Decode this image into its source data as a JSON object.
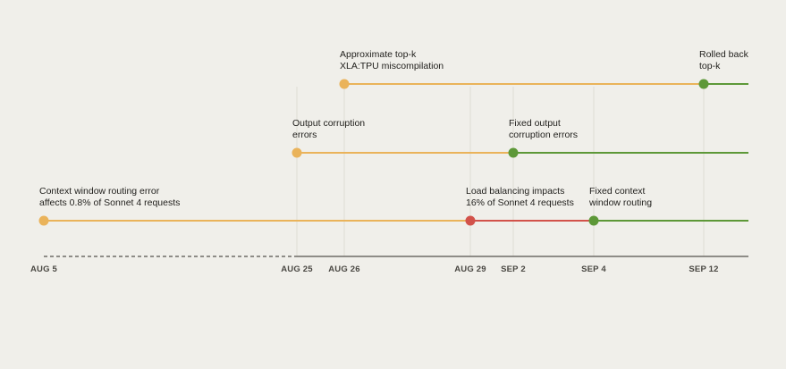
{
  "colors": {
    "background": "#f0efea",
    "issue": "#eab35a",
    "fixed": "#5d9838",
    "severe": "#d2524a",
    "marker_line": "#dedcd4",
    "axis": "#6e6c66",
    "text": "#1f1e1b"
  },
  "timeline": {
    "dates": [
      "AUG 5",
      "AUG 25",
      "AUG 26",
      "AUG 29",
      "SEP 2",
      "SEP 4",
      "SEP 12"
    ],
    "tracks": [
      {
        "id": "topk",
        "start_date": "AUG 26",
        "start_label": [
          "Approximate top-k",
          "XLA:TPU miscompilation"
        ],
        "segments": [
          {
            "from": "AUG 26",
            "to": "SEP 12",
            "status": "issue"
          },
          {
            "from": "SEP 12",
            "to": "end",
            "status": "fixed"
          }
        ],
        "events": [
          {
            "date": "SEP 12",
            "status": "fixed",
            "label": [
              "Rolled back",
              "top-k"
            ]
          }
        ]
      },
      {
        "id": "corruption",
        "start_date": "AUG 25",
        "start_label": [
          "Output corruption",
          "errors"
        ],
        "segments": [
          {
            "from": "AUG 25",
            "to": "SEP 2",
            "status": "issue"
          },
          {
            "from": "SEP 2",
            "to": "end",
            "status": "fixed"
          }
        ],
        "events": [
          {
            "date": "SEP 2",
            "status": "fixed",
            "label": [
              "Fixed output",
              "corruption errors"
            ]
          }
        ]
      },
      {
        "id": "routing",
        "start_date": "AUG 5",
        "start_label": [
          "Context window routing error",
          "affects 0.8% of Sonnet 4 requests"
        ],
        "segments": [
          {
            "from": "AUG 5",
            "to": "AUG 29",
            "status": "issue"
          },
          {
            "from": "AUG 29",
            "to": "SEP 4",
            "status": "severe"
          },
          {
            "from": "SEP 4",
            "to": "end",
            "status": "fixed"
          }
        ],
        "events": [
          {
            "date": "AUG 29",
            "status": "severe",
            "label": [
              "Load balancing impacts",
              "16% of Sonnet 4 requests"
            ]
          },
          {
            "date": "SEP 4",
            "status": "fixed",
            "label": [
              "Fixed context",
              "window routing"
            ]
          }
        ]
      }
    ]
  }
}
